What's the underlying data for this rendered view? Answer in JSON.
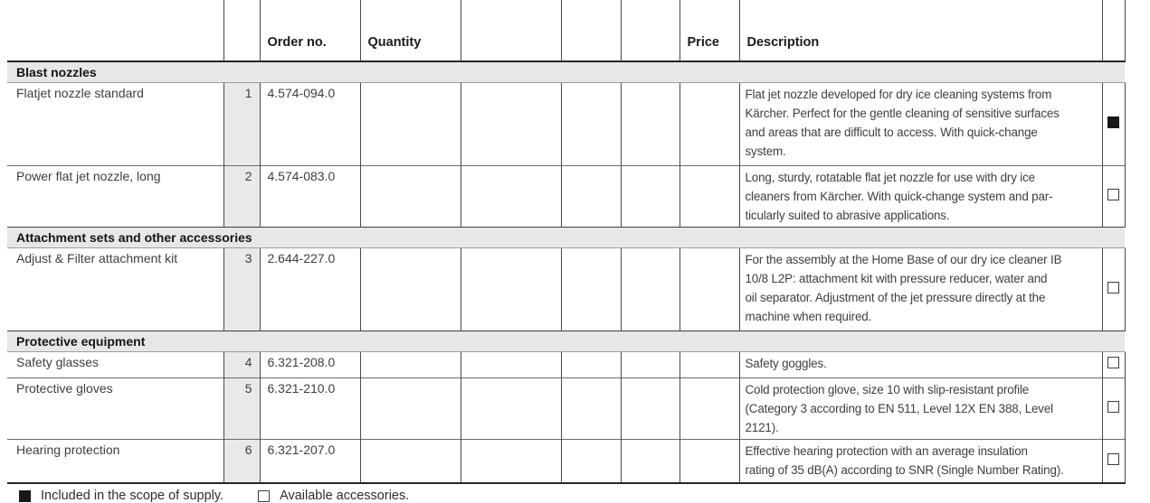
{
  "colors": {
    "section_band": "#e7e7e7",
    "number_column": "#e9e9e9",
    "border_dark": "#262626",
    "border_light": "#6a6a6a",
    "text": "#3e3e3e"
  },
  "table": {
    "headers": {
      "order_no": "Order no.",
      "quantity": "Quantity",
      "price": "Price",
      "description": "Description"
    },
    "sections": [
      {
        "title": "Blast nozzles",
        "items": [
          {
            "name": "Flatjet nozzle standard",
            "num": "1",
            "order_no": "4.574-094.0",
            "quantity": "",
            "price": "",
            "included": true,
            "description_lines": [
              "Flat jet nozzle developed for dry ice cleaning systems from",
              "Kärcher. Perfect for the gentle cleaning of sensitive surfaces",
              "and areas that are difficult to access. With quick-change",
              "system."
            ]
          },
          {
            "name": "Power flat jet nozzle, long",
            "num": "2",
            "order_no": "4.574-083.0",
            "quantity": "",
            "price": "",
            "included": false,
            "description_lines": [
              "Long, sturdy, rotatable flat jet nozzle for use with dry ice",
              "cleaners from Kärcher. With quick-change system and par-",
              "ticularly suited to abrasive applications."
            ]
          }
        ]
      },
      {
        "title": "Attachment sets and other accessories",
        "items": [
          {
            "name": "Adjust & Filter attachment kit",
            "num": "3",
            "order_no": "2.644-227.0",
            "quantity": "",
            "price": "",
            "included": false,
            "description_lines": [
              "For the assembly at the Home Base of our dry ice cleaner IB",
              "10/8 L2P: attachment kit with pressure reducer, water and",
              "oil separator. Adjustment of the jet pressure directly at the",
              "machine when required."
            ]
          }
        ]
      },
      {
        "title": "Protective equipment",
        "items": [
          {
            "name": "Safety glasses",
            "num": "4",
            "order_no": "6.321-208.0",
            "quantity": "",
            "price": "",
            "included": false,
            "description_lines": [
              "Safety goggles."
            ]
          },
          {
            "name": "Protective gloves",
            "num": "5",
            "order_no": "6.321-210.0",
            "quantity": "",
            "price": "",
            "included": false,
            "description_lines": [
              "Cold protection glove, size 10 with slip-resistant profile",
              "(Category 3 according to EN 511, Level 12X EN 388, Level",
              "2121)."
            ]
          },
          {
            "name": "Hearing protection",
            "num": "6",
            "order_no": "6.321-207.0",
            "quantity": "",
            "price": "",
            "included": false,
            "description_lines": [
              "Effective hearing protection with an average insulation",
              "rating of 35 dB(A) according to SNR (Single Number Rating)."
            ]
          }
        ]
      }
    ]
  },
  "legend": {
    "included": "Included in the scope of supply.",
    "available": "Available accessories."
  }
}
